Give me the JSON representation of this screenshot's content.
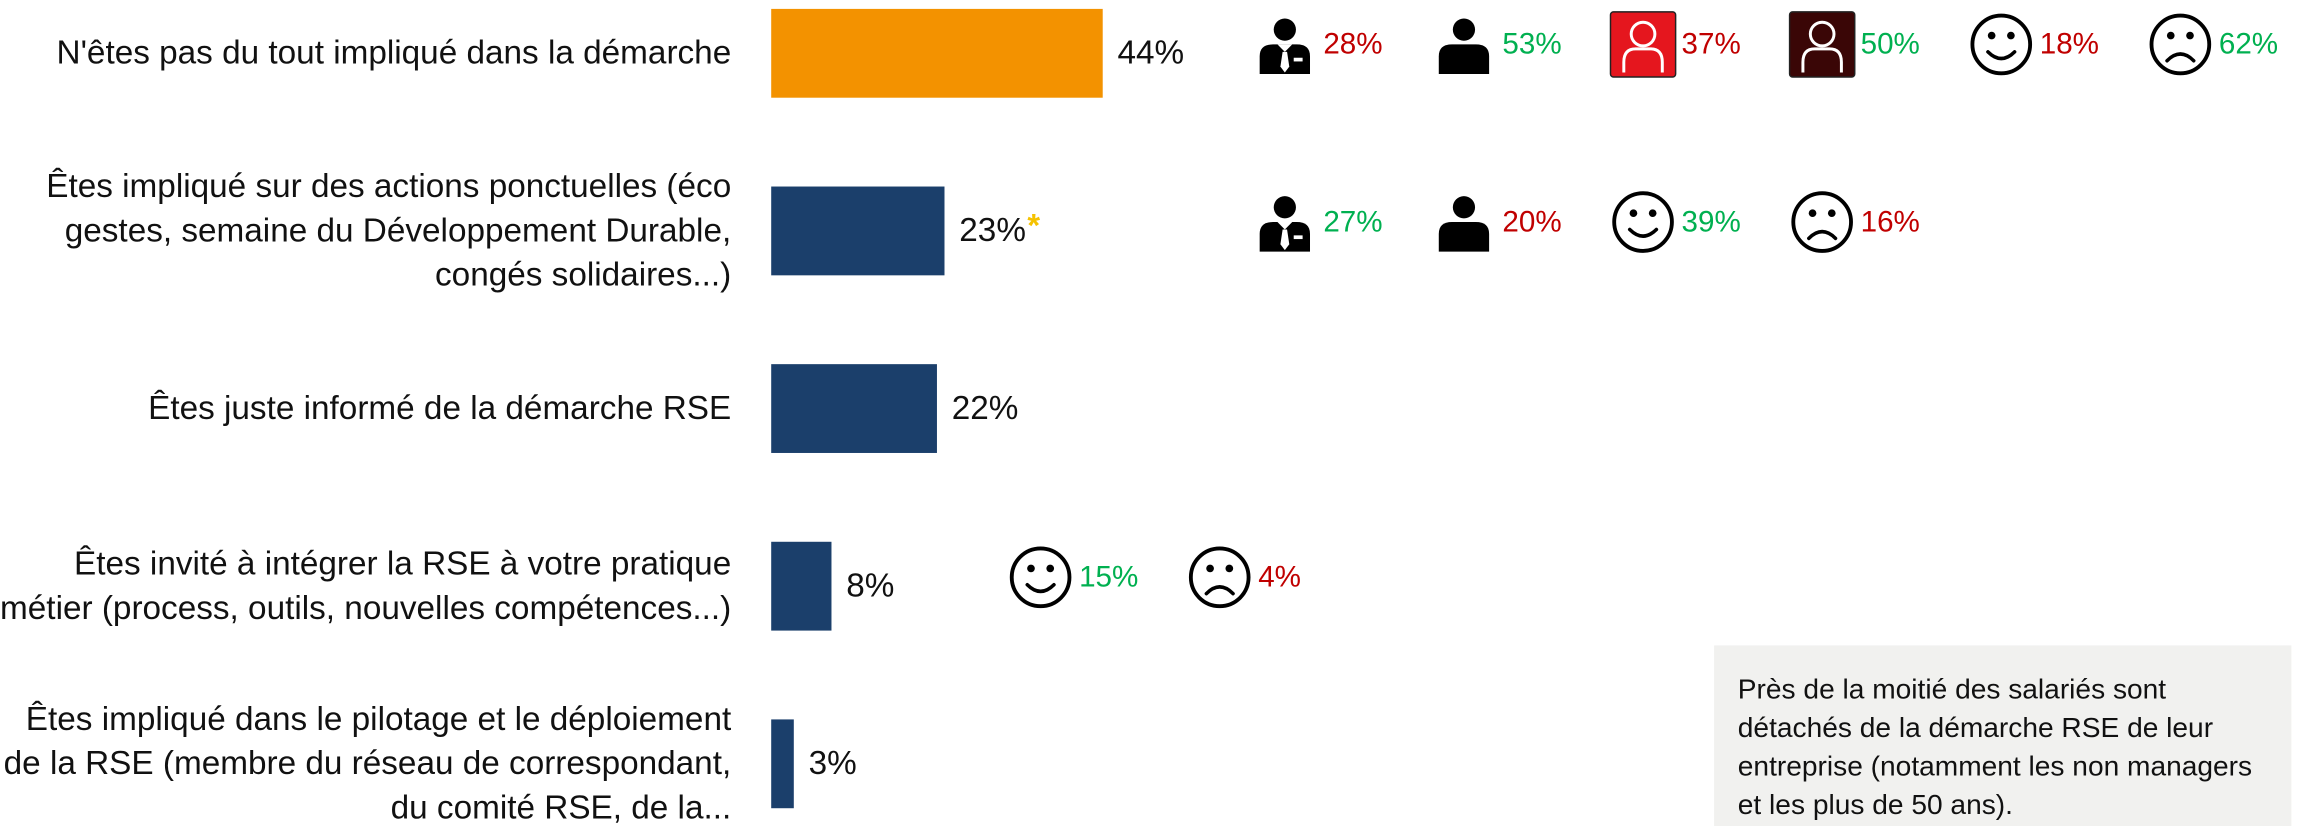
{
  "chart_data": {
    "type": "bar",
    "orientation": "horizontal",
    "categories": [
      "N'êtes pas du tout impliqué dans la démarche",
      "Êtes impliqué sur des actions ponctuelles (éco gestes, semaine du Développement Durable, congés solidaires...)",
      "Êtes juste informé de la démarche RSE",
      "Êtes invité à intégrer la RSE à votre pratique métier (process, outils, nouvelles compétences...)",
      "Êtes impliqué dans le pilotage et le déploiement de la RSE (membre du réseau de correspondant, du comité RSE, de la..."
    ],
    "values": [
      44,
      23,
      22,
      8,
      3
    ],
    "value_labels": [
      "44%",
      "23%",
      "22%",
      "8%",
      "3%"
    ],
    "colors": [
      "#f39200",
      "#1b3f6b",
      "#1b3f6b",
      "#1b3f6b",
      "#1b3f6b"
    ],
    "annotations": [
      {
        "row": 1,
        "text": "*",
        "color": "#f5c200"
      }
    ],
    "segments": [
      [
        {
          "icon": "manager",
          "value": 28,
          "value_label": "28%",
          "color": "#c00000"
        },
        {
          "icon": "employee",
          "value": 53,
          "value_label": "53%",
          "color": "#00b050"
        },
        {
          "icon": "woman",
          "value": 37,
          "value_label": "37%",
          "color": "#c00000"
        },
        {
          "icon": "man",
          "value": 50,
          "value_label": "50%",
          "color": "#00b050"
        },
        {
          "icon": "happy",
          "value": 18,
          "value_label": "18%",
          "color": "#c00000"
        },
        {
          "icon": "unhappy",
          "value": 62,
          "value_label": "62%",
          "color": "#00b050"
        }
      ],
      [
        {
          "icon": "manager",
          "value": 27,
          "value_label": "27%",
          "color": "#00b050"
        },
        {
          "icon": "employee",
          "value": 20,
          "value_label": "20%",
          "color": "#c00000"
        },
        {
          "icon": "happy",
          "value": 39,
          "value_label": "39%",
          "color": "#00b050"
        },
        {
          "icon": "unhappy",
          "value": 16,
          "value_label": "16%",
          "color": "#c00000"
        }
      ],
      [],
      [
        {
          "icon": "happy",
          "value": 15,
          "value_label": "15%",
          "color": "#00b050"
        },
        {
          "icon": "unhappy",
          "value": 4,
          "value_label": "4%",
          "color": "#c00000"
        }
      ],
      []
    ],
    "note": "Près de la moitié des salariés sont détachés de la démarche RSE de leur entreprise (notamment les non managers et les plus de 50 ans)."
  }
}
